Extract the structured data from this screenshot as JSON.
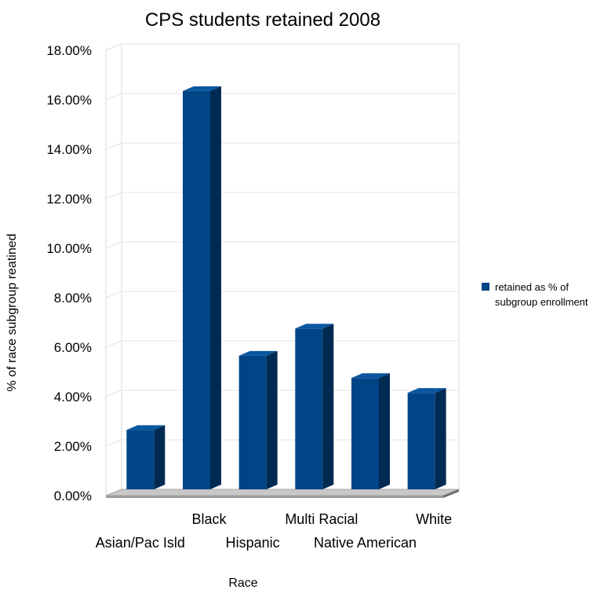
{
  "chart_data": {
    "type": "bar",
    "title": "CPS students retained 2008",
    "xlabel": "Race",
    "ylabel": "% of race subgroup reatined",
    "categories": [
      "Asian/Pac Isld",
      "Black",
      "Hispanic",
      "Multi Racial",
      "Native American",
      "White"
    ],
    "series": [
      {
        "name": "retained as % of subgroup enrollment",
        "values": [
          2.4,
          16.1,
          5.4,
          6.5,
          4.5,
          3.9
        ]
      }
    ],
    "ylim": [
      0,
      18
    ],
    "yticks": [
      "0.00%",
      "2.00%",
      "4.00%",
      "6.00%",
      "8.00%",
      "10.00%",
      "12.00%",
      "14.00%",
      "16.00%",
      "18.00%"
    ],
    "grid": true,
    "legend_position": "right",
    "colors": {
      "bar_front": "#004586",
      "bar_side": "#002a52",
      "bar_top": "#0a56a0",
      "floor": "#c8c8c8",
      "grid": "#e3e3e3"
    }
  },
  "legend": {
    "line1": "retained as % of",
    "line2": "subgroup enrollment"
  }
}
